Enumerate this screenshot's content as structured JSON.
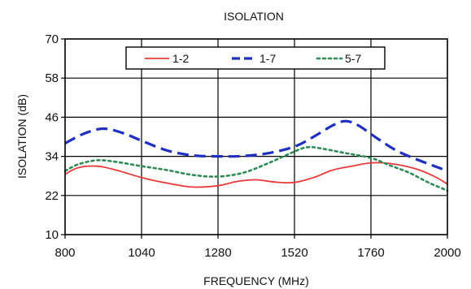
{
  "chart_data": {
    "type": "line",
    "title": "ISOLATION",
    "xlabel": "FREQUENCY (MHz)",
    "ylabel": "ISOLATION (dB)",
    "xlim": [
      800,
      2000
    ],
    "ylim": [
      10,
      70
    ],
    "xticks": [
      800,
      1040,
      1280,
      1520,
      1760,
      2000
    ],
    "yticks": [
      10,
      22,
      34,
      46,
      58,
      70
    ],
    "grid": true,
    "legend_position": "top",
    "series": [
      {
        "name": "1-2",
        "color": "#e8393a",
        "style": "solid",
        "points": [
          [
            800,
            28.5
          ],
          [
            840,
            30.5
          ],
          [
            900,
            31.0
          ],
          [
            960,
            29.8
          ],
          [
            1040,
            27.5
          ],
          [
            1120,
            25.8
          ],
          [
            1200,
            24.6
          ],
          [
            1280,
            25.0
          ],
          [
            1340,
            26.3
          ],
          [
            1400,
            26.8
          ],
          [
            1460,
            26.1
          ],
          [
            1520,
            26.0
          ],
          [
            1580,
            27.5
          ],
          [
            1640,
            29.8
          ],
          [
            1700,
            31.0
          ],
          [
            1760,
            32.0
          ],
          [
            1820,
            31.8
          ],
          [
            1900,
            30.2
          ],
          [
            1960,
            27.8
          ],
          [
            2000,
            25.5
          ]
        ]
      },
      {
        "name": "1-7",
        "color": "#1f2fbf",
        "style": "dashed",
        "points": [
          [
            800,
            38.0
          ],
          [
            860,
            41.0
          ],
          [
            920,
            42.5
          ],
          [
            980,
            41.2
          ],
          [
            1040,
            38.8
          ],
          [
            1120,
            35.8
          ],
          [
            1200,
            34.3
          ],
          [
            1280,
            34.0
          ],
          [
            1360,
            34.1
          ],
          [
            1440,
            35.0
          ],
          [
            1520,
            37.0
          ],
          [
            1580,
            40.0
          ],
          [
            1640,
            43.5
          ],
          [
            1680,
            44.8
          ],
          [
            1720,
            43.5
          ],
          [
            1780,
            39.5
          ],
          [
            1840,
            35.8
          ],
          [
            1900,
            33.2
          ],
          [
            1960,
            31.0
          ],
          [
            2000,
            29.5
          ]
        ]
      },
      {
        "name": "5-7",
        "color": "#2e8b57",
        "style": "dotted",
        "points": [
          [
            800,
            29.5
          ],
          [
            840,
            31.5
          ],
          [
            900,
            32.8
          ],
          [
            960,
            32.3
          ],
          [
            1040,
            31.0
          ],
          [
            1120,
            29.8
          ],
          [
            1200,
            28.3
          ],
          [
            1280,
            27.8
          ],
          [
            1360,
            29.0
          ],
          [
            1440,
            32.0
          ],
          [
            1520,
            35.5
          ],
          [
            1560,
            36.8
          ],
          [
            1600,
            36.5
          ],
          [
            1680,
            35.0
          ],
          [
            1760,
            33.5
          ],
          [
            1820,
            31.2
          ],
          [
            1880,
            29.0
          ],
          [
            1940,
            26.0
          ],
          [
            2000,
            23.5
          ]
        ]
      }
    ]
  }
}
